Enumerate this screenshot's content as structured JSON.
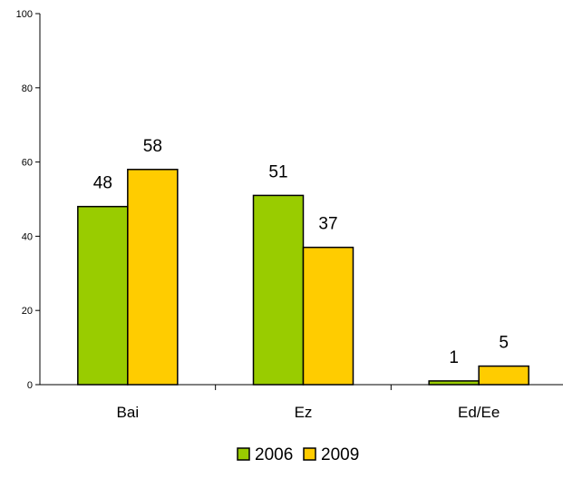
{
  "chart_data": {
    "type": "bar",
    "categories": [
      "Bai",
      "Ez",
      "Ed/Ee"
    ],
    "series": [
      {
        "name": "2006",
        "values": [
          48,
          51,
          1
        ],
        "color": "#99cc00"
      },
      {
        "name": "2009",
        "values": [
          58,
          37,
          5
        ],
        "color": "#ffcc00"
      }
    ],
    "ylim": [
      0,
      100
    ],
    "yticks": [
      0,
      20,
      40,
      60,
      80,
      100
    ],
    "data_labels": true,
    "grid": false,
    "legend": "bottom",
    "title": "",
    "xlabel": "",
    "ylabel": ""
  }
}
